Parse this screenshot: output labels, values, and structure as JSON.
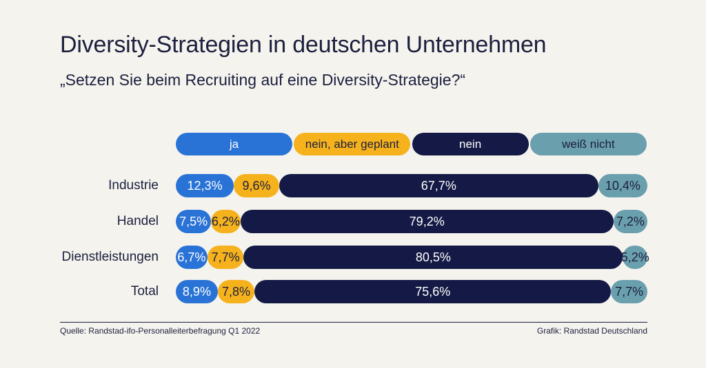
{
  "title": "Diversity-Strategien in deutschen Unternehmen",
  "subtitle": "„Setzen Sie beim Recruiting auf eine Diversity-Strategie?“",
  "colors": {
    "ja": "#2a73d6",
    "geplant": "#f6b21d",
    "nein": "#141a45",
    "weiss_nicht": "#6a9fae",
    "background": "#f4f3ee"
  },
  "chart_data": {
    "type": "bar",
    "orientation": "horizontal",
    "stacked": true,
    "normalized": true,
    "title": "Diversity-Strategien in deutschen Unternehmen",
    "subtitle": "„Setzen Sie beim Recruiting auf eine Diversity-Strategie?“",
    "categories": [
      "Industrie",
      "Handel",
      "Dienstleistungen",
      "Total"
    ],
    "series": [
      {
        "name": "ja",
        "values": [
          12.3,
          7.5,
          6.7,
          8.9
        ],
        "labels": [
          "12,3%",
          "7,5%",
          "6,7%",
          "8,9%"
        ]
      },
      {
        "name": "nein, aber geplant",
        "values": [
          9.6,
          6.2,
          7.7,
          7.8
        ],
        "labels": [
          "9,6%",
          "6,2%",
          "7,7%",
          "7,8%"
        ]
      },
      {
        "name": "nein",
        "values": [
          67.7,
          79.2,
          80.5,
          75.6
        ],
        "labels": [
          "67,7%",
          "79,2%",
          "80,5%",
          "75,6%"
        ]
      },
      {
        "name": "weiß nicht",
        "values": [
          10.4,
          7.2,
          5.2,
          7.7
        ],
        "labels": [
          "10,4%",
          "7,2%",
          "5,2%",
          "7,7%"
        ]
      }
    ],
    "legend_position": "top"
  },
  "footer": {
    "source": "Quelle: Randstad-ifo-Personalleiterbefragung Q1 2022",
    "credit": "Grafik: Randstad Deutschland"
  }
}
